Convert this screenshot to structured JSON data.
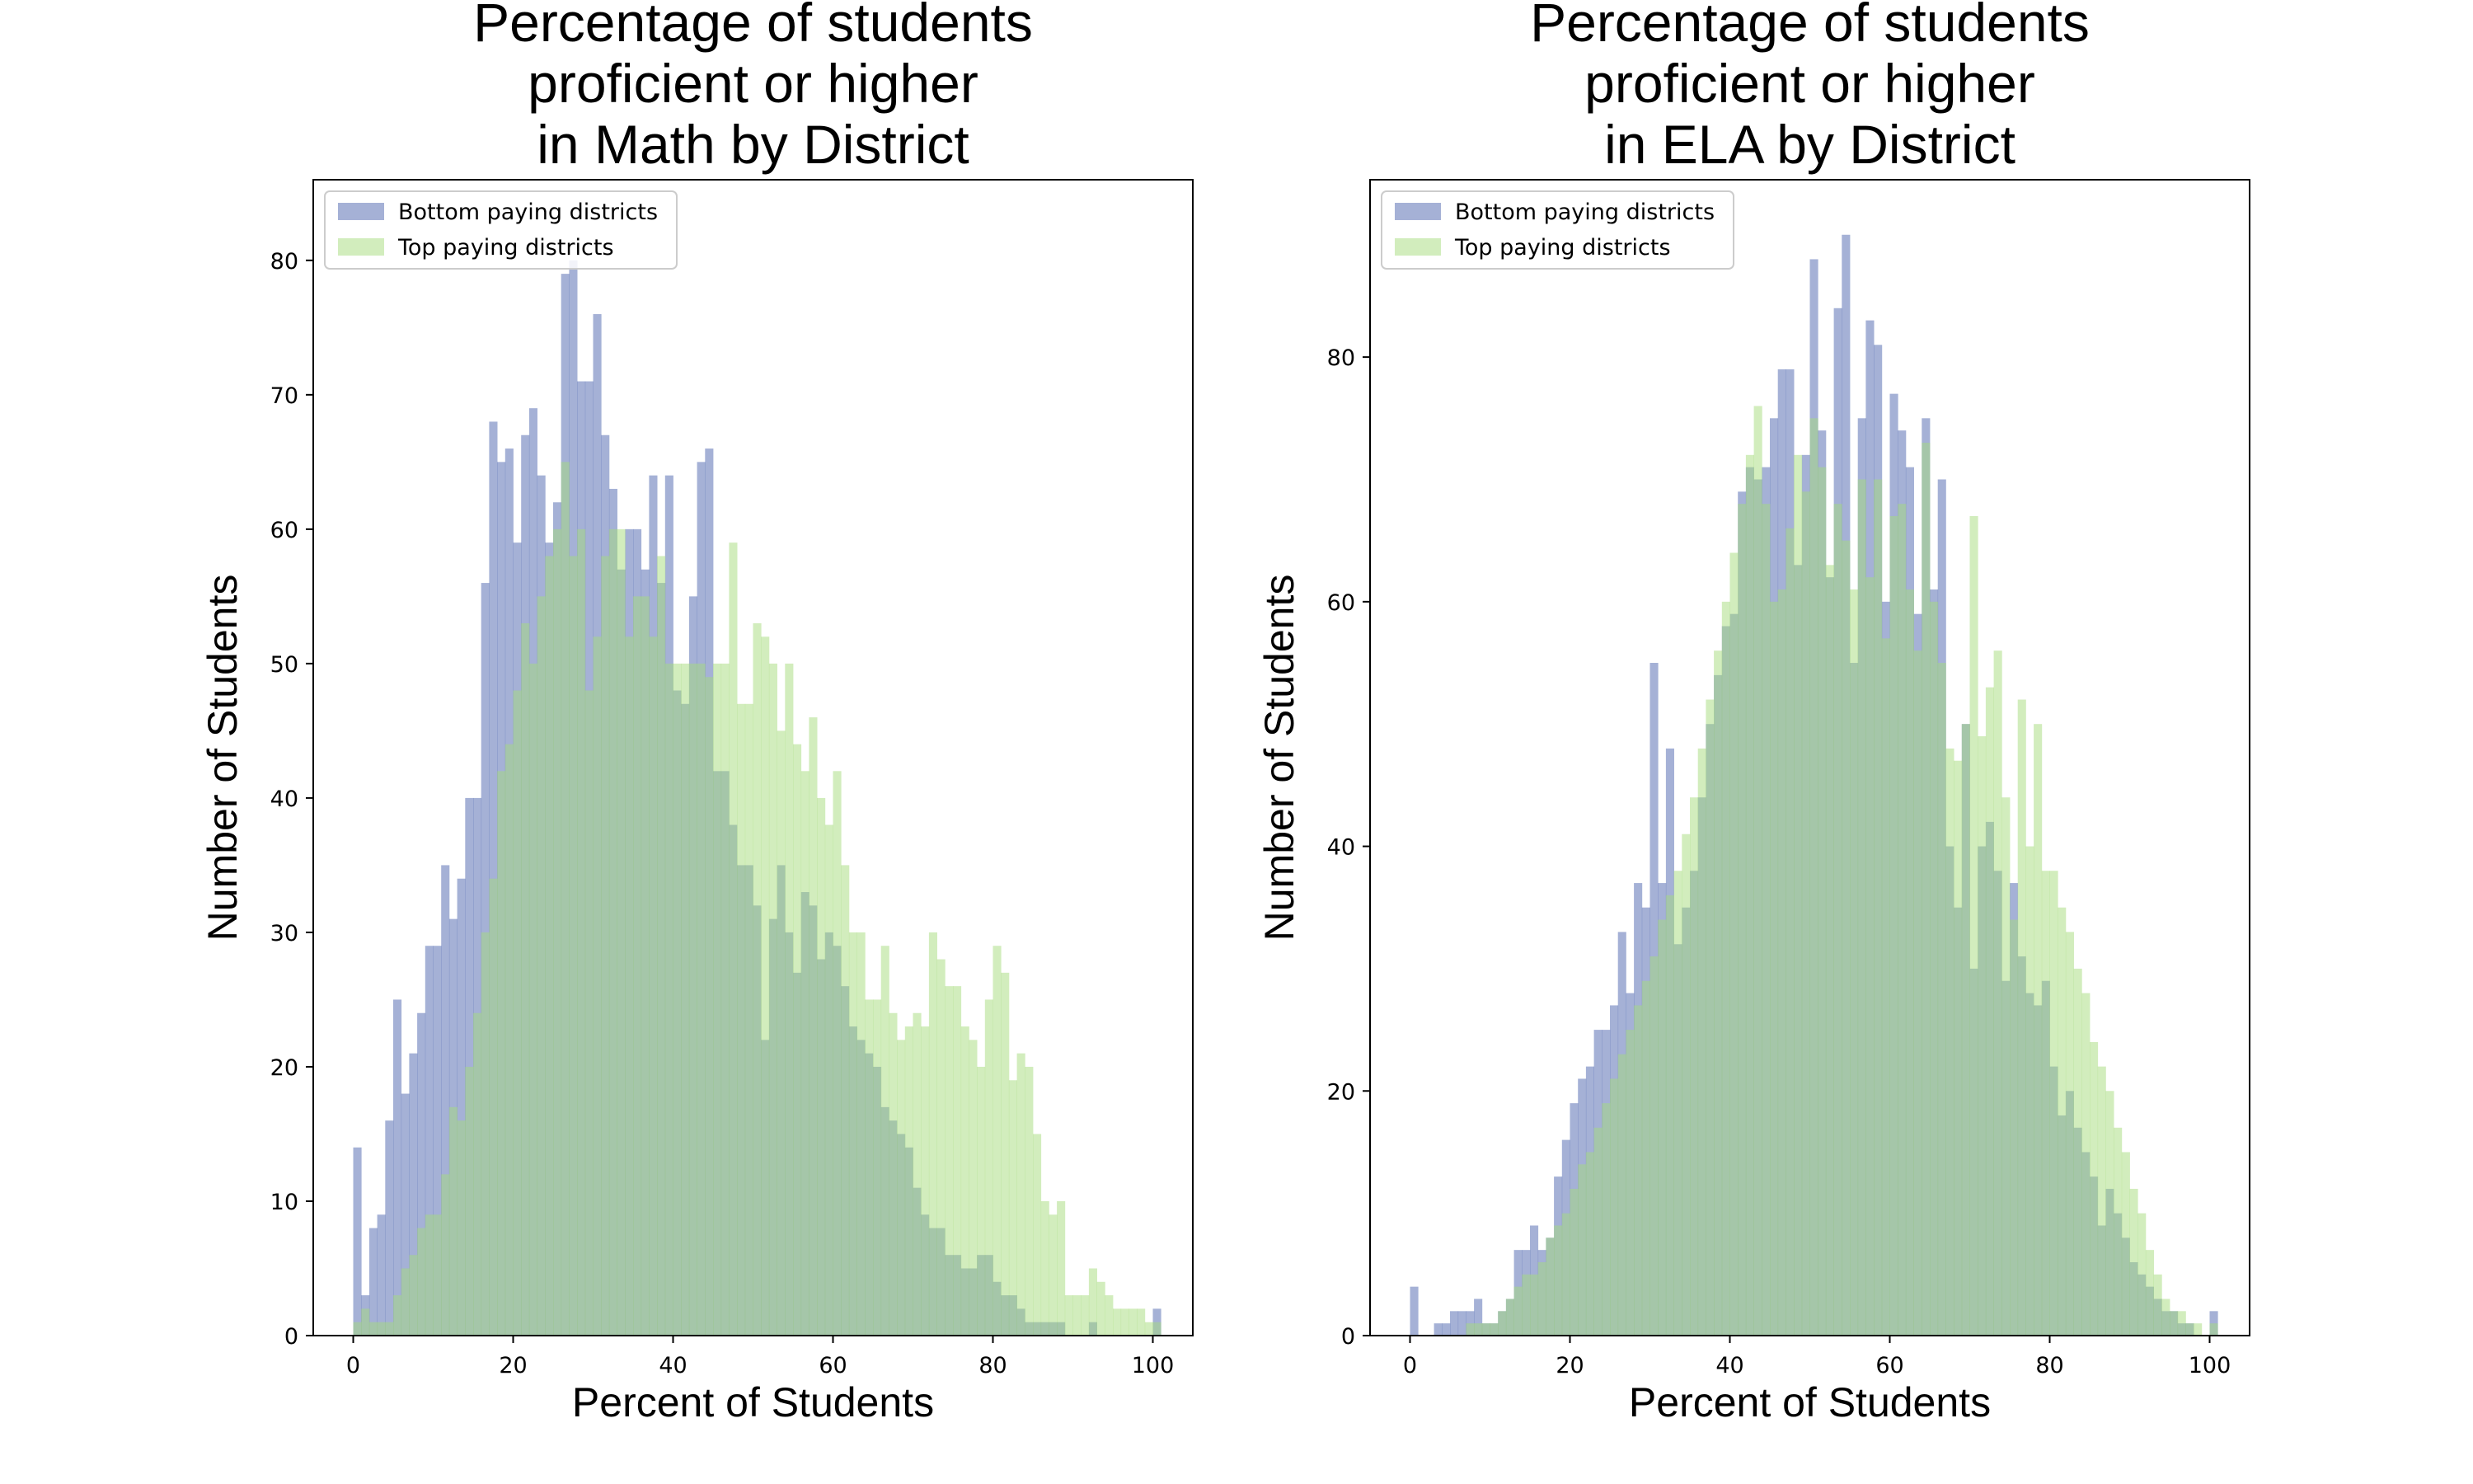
{
  "chart_data": [
    {
      "type": "bar",
      "title_lines": [
        "Percentage of students",
        "proficient or higher",
        "in Math by District"
      ],
      "xlabel": "Percent of Students",
      "ylabel": "Number of Students",
      "xlim": [
        -5,
        105
      ],
      "ylim": [
        0,
        86
      ],
      "xticks": [
        0,
        20,
        40,
        60,
        80,
        100
      ],
      "yticks": [
        0,
        10,
        20,
        30,
        40,
        50,
        60,
        70,
        80
      ],
      "grid": false,
      "legend_position": "top-left",
      "bin_width": 1,
      "bin_start": 0,
      "series": [
        {
          "name": "Bottom paying districts",
          "color": "#4c64ae",
          "opacity": 0.5,
          "values": [
            14,
            3,
            8,
            9,
            16,
            25,
            18,
            21,
            24,
            29,
            29,
            35,
            31,
            34,
            40,
            40,
            56,
            68,
            65,
            66,
            59,
            67,
            69,
            64,
            59,
            62,
            79,
            80,
            71,
            71,
            76,
            67,
            63,
            57,
            60,
            60,
            57,
            64,
            56,
            64,
            48,
            47,
            55,
            65,
            66,
            42,
            42,
            38,
            35,
            35,
            32,
            22,
            31,
            35,
            30,
            27,
            33,
            32,
            28,
            30,
            29,
            26,
            23,
            22,
            21,
            20,
            17,
            16,
            15,
            14,
            11,
            9,
            8,
            8,
            6,
            6,
            5,
            5,
            6,
            6,
            4,
            3,
            3,
            2,
            1,
            1,
            1,
            1,
            1,
            0,
            0,
            0,
            1,
            0,
            0,
            0,
            0,
            0,
            0,
            0,
            2
          ]
        },
        {
          "name": "Top paying districts",
          "color": "#a6dc7b",
          "opacity": 0.5,
          "values": [
            1,
            2,
            1,
            1,
            1,
            3,
            5,
            6,
            8,
            9,
            9,
            12,
            17,
            16,
            20,
            24,
            30,
            34,
            42,
            44,
            48,
            53,
            50,
            55,
            58,
            60,
            65,
            58,
            60,
            48,
            52,
            58,
            60,
            60,
            52,
            55,
            55,
            52,
            58,
            50,
            50,
            50,
            50,
            50,
            49,
            50,
            50,
            59,
            47,
            47,
            53,
            52,
            50,
            45,
            50,
            44,
            42,
            46,
            40,
            38,
            42,
            35,
            30,
            30,
            25,
            25,
            29,
            24,
            22,
            23,
            24,
            23,
            30,
            28,
            26,
            26,
            23,
            22,
            20,
            25,
            29,
            27,
            19,
            21,
            20,
            15,
            10,
            9,
            10,
            3,
            3,
            3,
            5,
            4,
            3,
            2,
            2,
            2,
            2,
            1,
            1
          ]
        }
      ]
    },
    {
      "type": "bar",
      "title_lines": [
        "Percentage of students",
        "proficient or higher",
        "in ELA by District"
      ],
      "xlabel": "Percent of Students",
      "ylabel": "Number of Students",
      "xlim": [
        -5,
        105
      ],
      "ylim": [
        0,
        94.5
      ],
      "xticks": [
        0,
        20,
        40,
        60,
        80,
        100
      ],
      "yticks": [
        0,
        20,
        40,
        60,
        80
      ],
      "grid": false,
      "legend_position": "top-left",
      "bin_width": 1,
      "bin_start": 0,
      "series": [
        {
          "name": "Bottom paying districts",
          "color": "#4c64ae",
          "opacity": 0.5,
          "values": [
            4,
            0,
            0,
            1,
            1,
            2,
            2,
            2,
            3,
            1,
            1,
            2,
            3,
            7,
            7,
            9,
            7,
            8,
            13,
            16,
            19,
            21,
            22,
            25,
            25,
            27,
            33,
            28,
            37,
            35,
            55,
            37,
            48,
            32,
            35,
            38,
            44,
            50,
            54,
            58,
            59,
            69,
            71,
            70,
            71,
            75,
            79,
            79,
            63,
            72,
            88,
            74,
            62,
            84,
            90,
            55,
            75,
            83,
            81,
            60,
            77,
            74,
            71,
            59,
            75,
            61,
            70,
            40,
            35,
            50,
            30,
            40,
            42,
            38,
            29,
            37,
            31,
            28,
            27,
            29,
            22,
            18,
            20,
            17,
            15,
            13,
            9,
            12,
            10,
            8,
            6,
            5,
            4,
            3,
            2,
            2,
            1,
            1,
            0,
            0,
            2
          ]
        },
        {
          "name": "Top paying districts",
          "color": "#a6dc7b",
          "opacity": 0.5,
          "values": [
            0,
            0,
            0,
            0,
            0,
            0,
            0,
            1,
            1,
            1,
            1,
            2,
            3,
            4,
            5,
            5,
            6,
            8,
            9,
            10,
            12,
            14,
            15,
            17,
            19,
            21,
            23,
            25,
            27,
            29,
            31,
            34,
            36,
            38,
            41,
            44,
            48,
            52,
            56,
            60,
            64,
            68,
            72,
            76,
            68,
            60,
            61,
            66,
            72,
            69,
            75,
            71,
            63,
            68,
            65,
            61,
            70,
            62,
            70,
            57,
            67,
            68,
            61,
            56,
            73,
            60,
            55,
            48,
            47,
            50,
            67,
            49,
            53,
            56,
            44,
            34,
            52,
            40,
            50,
            38,
            38,
            35,
            33,
            30,
            28,
            24,
            22,
            20,
            17,
            15,
            12,
            10,
            7,
            5,
            3,
            2,
            2,
            1,
            1,
            0,
            1
          ]
        }
      ]
    }
  ]
}
